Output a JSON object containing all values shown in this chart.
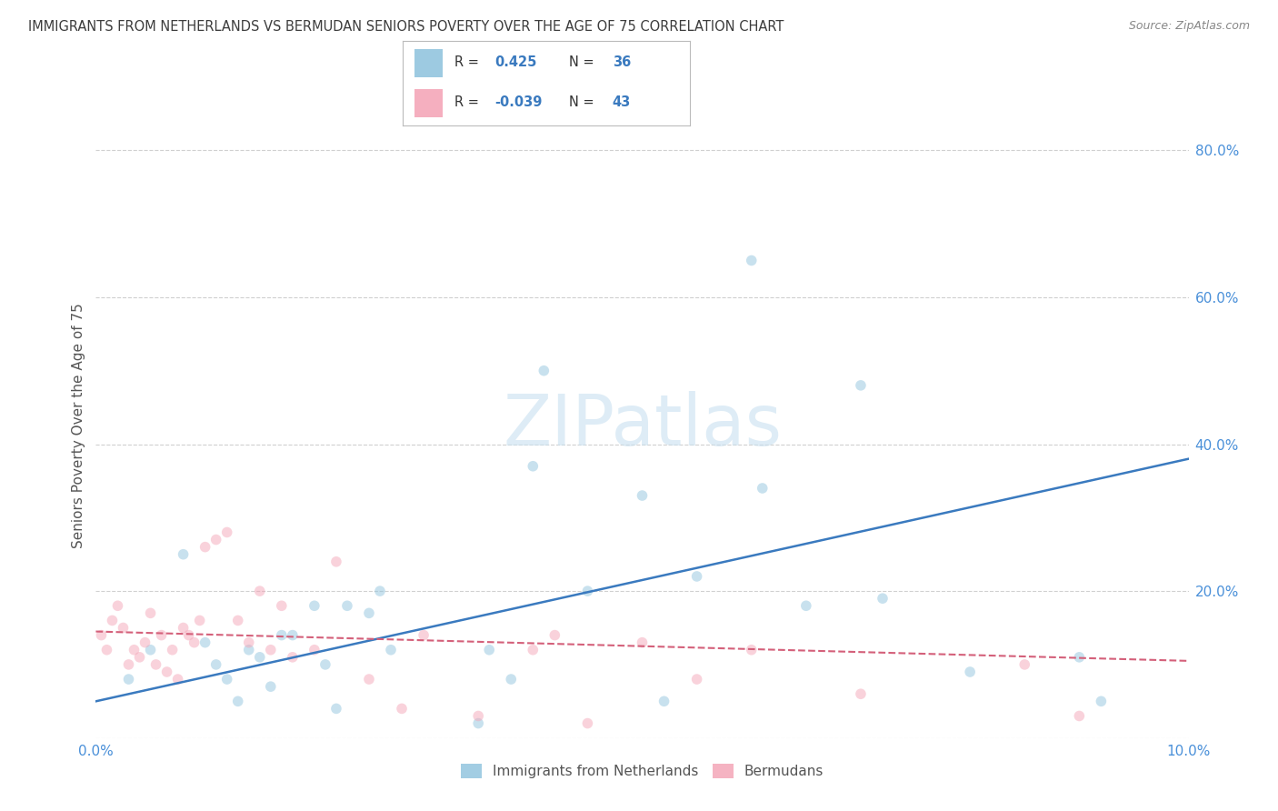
{
  "title": "IMMIGRANTS FROM NETHERLANDS VS BERMUDAN SENIORS POVERTY OVER THE AGE OF 75 CORRELATION CHART",
  "source": "Source: ZipAtlas.com",
  "ylabel": "Seniors Poverty Over the Age of 75",
  "legend_r1_label": "R = ",
  "legend_r1_val": "0.425",
  "legend_n1_label": "N = ",
  "legend_n1_val": "36",
  "legend_r2_label": "R = ",
  "legend_r2_val": "-0.039",
  "legend_n2_label": "N = ",
  "legend_n2_val": "43",
  "xlim": [
    0.0,
    10.0
  ],
  "ylim": [
    0.0,
    85.0
  ],
  "yticks": [
    0.0,
    20.0,
    40.0,
    60.0,
    80.0
  ],
  "ytick_labels": [
    "",
    "20.0%",
    "40.0%",
    "60.0%",
    "80.0%"
  ],
  "blue_scatter_x": [
    0.3,
    0.5,
    0.8,
    1.0,
    1.1,
    1.2,
    1.3,
    1.4,
    1.5,
    1.6,
    1.7,
    1.8,
    2.0,
    2.1,
    2.2,
    2.3,
    2.5,
    2.6,
    2.7,
    3.5,
    3.6,
    3.8,
    4.0,
    4.1,
    4.5,
    5.0,
    5.2,
    5.5,
    6.0,
    6.1,
    6.5,
    7.0,
    7.2,
    8.0,
    9.0,
    9.2
  ],
  "blue_scatter_y": [
    8.0,
    12.0,
    25.0,
    13.0,
    10.0,
    8.0,
    5.0,
    12.0,
    11.0,
    7.0,
    14.0,
    14.0,
    18.0,
    10.0,
    4.0,
    18.0,
    17.0,
    20.0,
    12.0,
    2.0,
    12.0,
    8.0,
    37.0,
    50.0,
    20.0,
    33.0,
    5.0,
    22.0,
    65.0,
    34.0,
    18.0,
    48.0,
    19.0,
    9.0,
    11.0,
    5.0
  ],
  "pink_scatter_x": [
    0.05,
    0.1,
    0.15,
    0.2,
    0.25,
    0.3,
    0.35,
    0.4,
    0.45,
    0.5,
    0.55,
    0.6,
    0.65,
    0.7,
    0.75,
    0.8,
    0.85,
    0.9,
    0.95,
    1.0,
    1.1,
    1.2,
    1.3,
    1.4,
    1.5,
    1.6,
    1.7,
    1.8,
    2.0,
    2.2,
    2.5,
    2.8,
    3.0,
    3.5,
    4.0,
    4.2,
    4.5,
    5.0,
    5.5,
    6.0,
    7.0,
    8.5,
    9.0
  ],
  "pink_scatter_y": [
    14.0,
    12.0,
    16.0,
    18.0,
    15.0,
    10.0,
    12.0,
    11.0,
    13.0,
    17.0,
    10.0,
    14.0,
    9.0,
    12.0,
    8.0,
    15.0,
    14.0,
    13.0,
    16.0,
    26.0,
    27.0,
    28.0,
    16.0,
    13.0,
    20.0,
    12.0,
    18.0,
    11.0,
    12.0,
    24.0,
    8.0,
    4.0,
    14.0,
    3.0,
    12.0,
    14.0,
    2.0,
    13.0,
    8.0,
    12.0,
    6.0,
    10.0,
    3.0
  ],
  "blue_line_x": [
    0.0,
    10.0
  ],
  "blue_line_y": [
    5.0,
    38.0
  ],
  "pink_line_x": [
    0.0,
    10.0
  ],
  "pink_line_y": [
    14.5,
    10.5
  ],
  "background_color": "#ffffff",
  "scatter_alpha": 0.5,
  "scatter_size": 70,
  "blue_color": "#92c5de",
  "pink_color": "#f4a6b8",
  "blue_line_color": "#3a7abf",
  "pink_line_color": "#d4607a",
  "title_color": "#3d3d3d",
  "axis_label_color": "#555555",
  "tick_color": "#4a90d9",
  "grid_color": "#d0d0d0",
  "watermark_color": "#c8e0f0",
  "source_color": "#888888",
  "legend_text_color": "#333333",
  "legend_val_color": "#3a7abf"
}
